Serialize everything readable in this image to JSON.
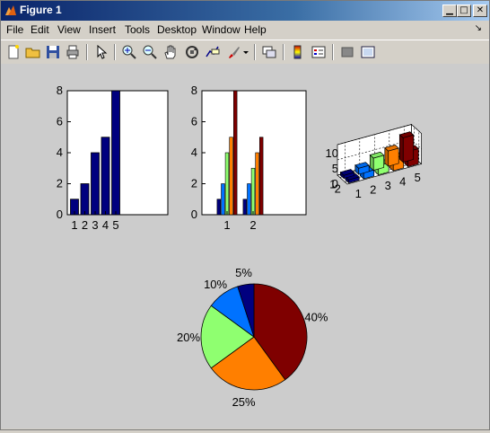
{
  "window": {
    "title": "Figure 1"
  },
  "menu": [
    "File",
    "Edit",
    "View",
    "Insert",
    "Tools",
    "Desktop",
    "Window",
    "Help"
  ],
  "menu_extra": "↘",
  "toolbar": {
    "icons": [
      "new-file-icon",
      "open-folder-icon",
      "save-icon",
      "print-icon",
      "pointer-icon",
      "zoom-in-icon",
      "zoom-out-icon",
      "pan-hand-icon",
      "rotate-3d-icon",
      "data-cursor-icon",
      "brush-icon",
      "dropdown-arrow-icon",
      "link-plot-icon",
      "colorbar-icon",
      "legend-icon",
      "hide-tools-icon",
      "show-tools-icon"
    ]
  },
  "colors": {
    "navy": "#00007f",
    "blue": "#0072ff",
    "cyan": "#00bfff",
    "green": "#8fff70",
    "orange": "#ff7f00",
    "darkred": "#7f0000"
  },
  "chart_data": [
    {
      "type": "bar",
      "categories": [
        "1",
        "2",
        "3",
        "4",
        "5"
      ],
      "values": [
        1,
        2,
        4,
        5,
        8
      ],
      "ylim": [
        0,
        8
      ],
      "yticks": [
        "0",
        "2",
        "4",
        "6",
        "8"
      ]
    },
    {
      "type": "bar",
      "categories": [
        "1",
        "2"
      ],
      "series": [
        {
          "values": [
            1,
            1
          ]
        },
        {
          "values": [
            2,
            2
          ]
        },
        {
          "values": [
            4,
            3
          ]
        },
        {
          "values": [
            5,
            4
          ]
        },
        {
          "values": [
            8,
            5
          ]
        }
      ],
      "ylim": [
        0,
        8
      ],
      "yticks": [
        "0",
        "2",
        "4",
        "6",
        "8"
      ]
    },
    {
      "type": "bar",
      "subtype": "3d",
      "x_ticks": [
        "1",
        "2",
        "3",
        "4",
        "5"
      ],
      "y_ticks": [
        "1",
        "2"
      ],
      "z_ticks": [
        "0",
        "5",
        "10"
      ],
      "values": [
        [
          1,
          2,
          4,
          5,
          8
        ],
        [
          1,
          2,
          3,
          4,
          5
        ]
      ]
    },
    {
      "type": "pie",
      "labels": [
        "5%",
        "10%",
        "20%",
        "25%",
        "40%"
      ],
      "values": [
        5,
        10,
        20,
        25,
        40
      ]
    }
  ]
}
